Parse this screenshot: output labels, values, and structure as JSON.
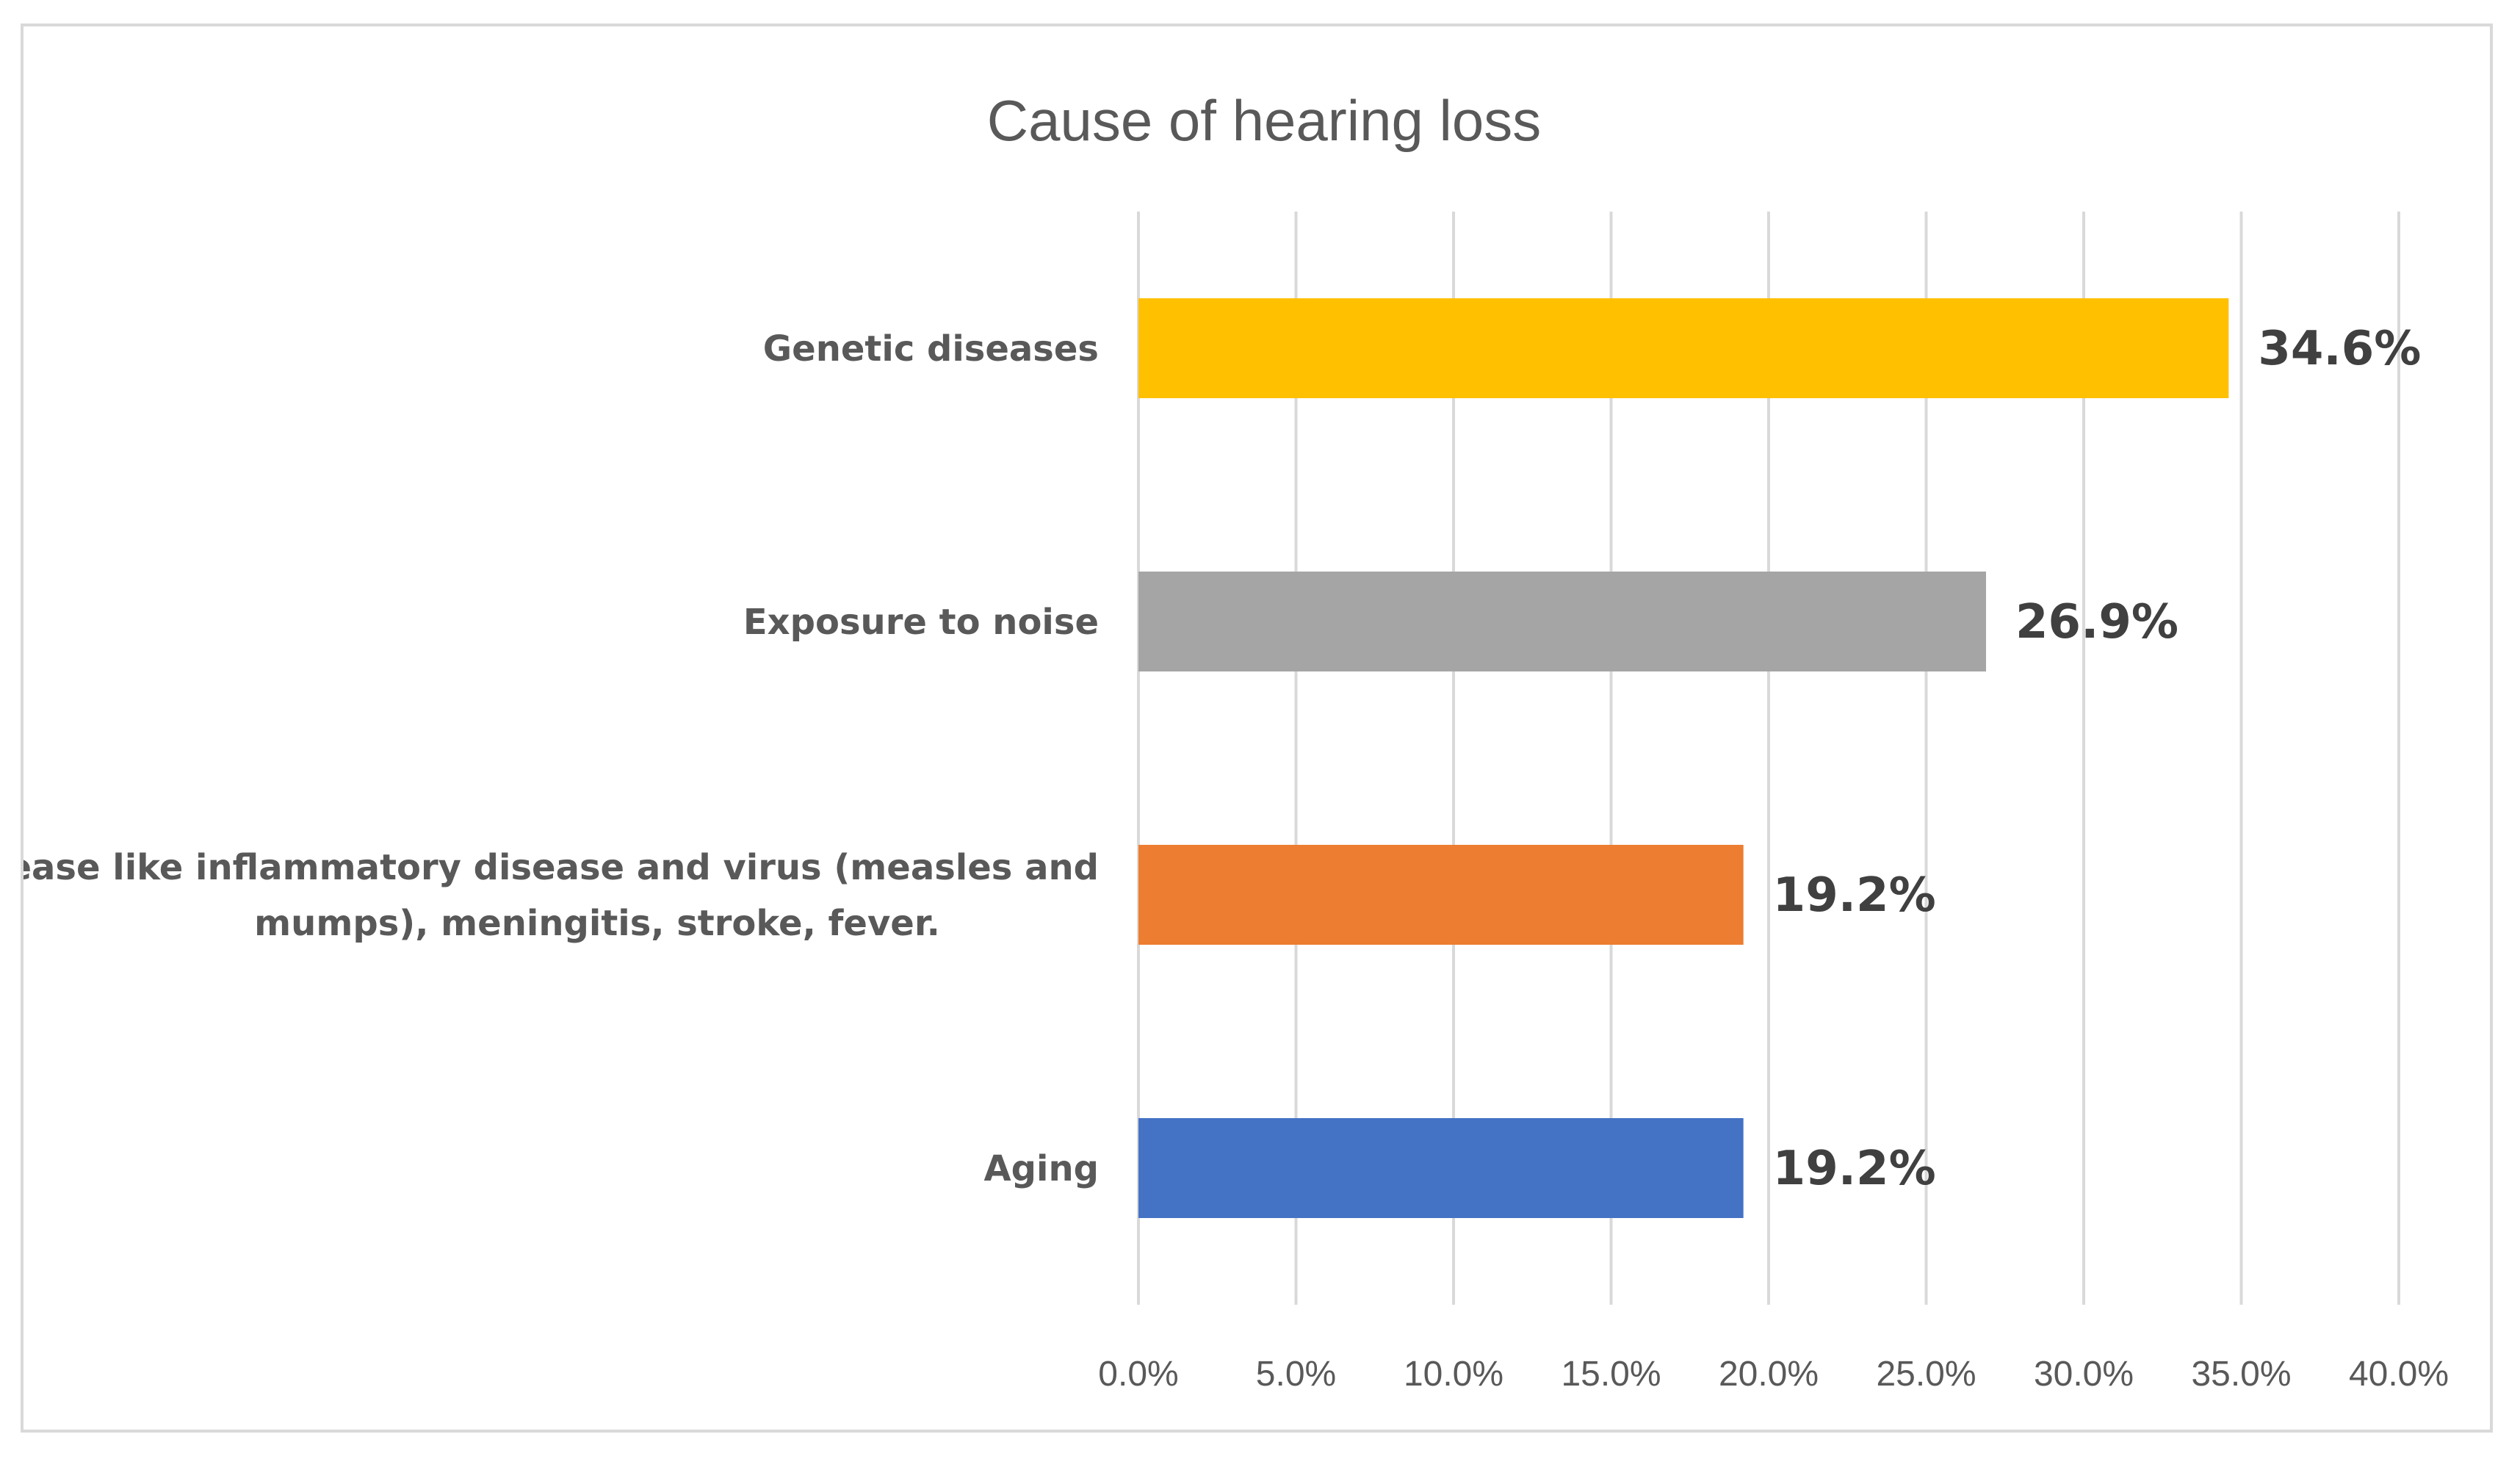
{
  "chart_data": {
    "type": "bar",
    "orientation": "horizontal",
    "title": "Cause of hearing loss",
    "categories": [
      [
        "Genetic diseases"
      ],
      [
        "Exposure to noise"
      ],
      [
        "Disease like inflammatory disease and virus (measles and",
        "mumps), meningitis, stroke, fever."
      ],
      [
        "Aging"
      ]
    ],
    "values": [
      34.6,
      26.9,
      19.2,
      19.2
    ],
    "value_labels": [
      "34.6%",
      "26.9%",
      "19.2%",
      "19.2%"
    ],
    "colors": [
      "#FFC000",
      "#A5A5A5",
      "#ED7D31",
      "#4472C4"
    ],
    "xlim": [
      0,
      40
    ],
    "xticks": [
      0,
      5,
      10,
      15,
      20,
      25,
      30,
      35,
      40
    ],
    "xtick_labels": [
      "0.0%",
      "5.0%",
      "10.0%",
      "15.0%",
      "20.0%",
      "25.0%",
      "30.0%",
      "35.0%",
      "40.0%"
    ],
    "xlabel": "",
    "ylabel": "",
    "grid": "vertical",
    "legend": "none"
  }
}
